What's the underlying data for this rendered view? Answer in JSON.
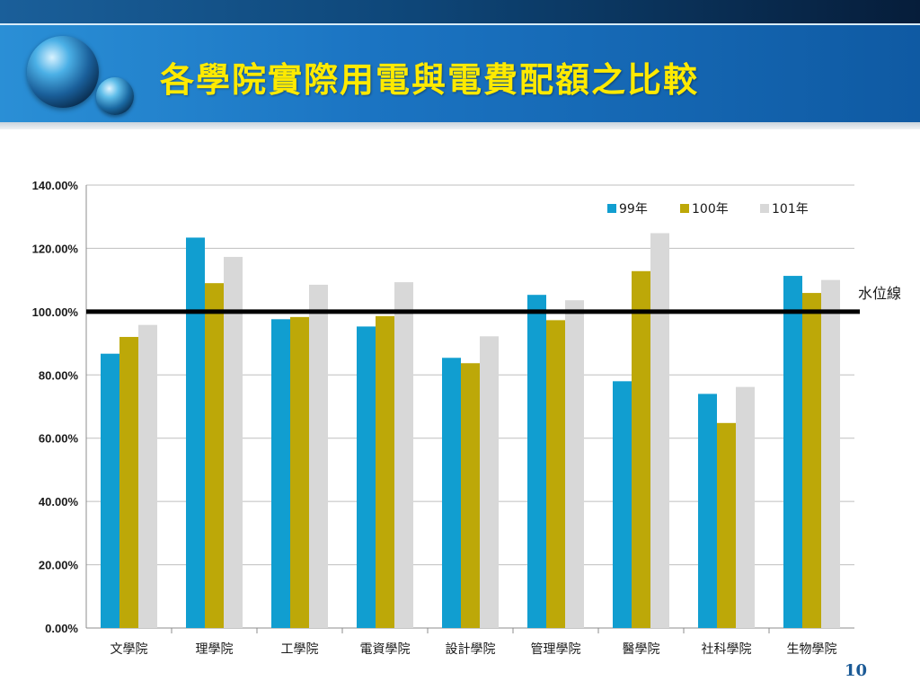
{
  "slide": {
    "title": "各學院實際用電與電費配額之比較",
    "page_number": "10"
  },
  "colors": {
    "series_99": "#119ed0",
    "series_100": "#bda808",
    "series_101": "#d8d8d8",
    "title": "#ffea00",
    "waterline": "#000000"
  },
  "chart_data": {
    "type": "bar",
    "categories": [
      "文學院",
      "理學院",
      "工學院",
      "電資學院",
      "設計學院",
      "管理學院",
      "醫學院",
      "社科學院",
      "生物學院"
    ],
    "series": [
      {
        "name": "99年",
        "values": [
          86.7,
          123.4,
          97.6,
          95.3,
          85.4,
          105.3,
          78.0,
          74.0,
          111.3
        ]
      },
      {
        "name": "100年",
        "values": [
          92.0,
          109.0,
          98.3,
          98.6,
          83.7,
          97.3,
          112.8,
          64.8,
          105.9
        ]
      },
      {
        "name": "101年",
        "values": [
          95.8,
          117.3,
          108.5,
          109.3,
          92.2,
          103.6,
          124.8,
          76.2,
          110.0
        ]
      }
    ],
    "ylim": [
      0,
      140
    ],
    "yticks": [
      "0.00%",
      "20.00%",
      "40.00%",
      "60.00%",
      "80.00%",
      "100.00%",
      "120.00%",
      "140.00%"
    ],
    "grid": true,
    "legend_position": "top-right",
    "reference_line": {
      "value": 100,
      "label": "水位線"
    }
  }
}
